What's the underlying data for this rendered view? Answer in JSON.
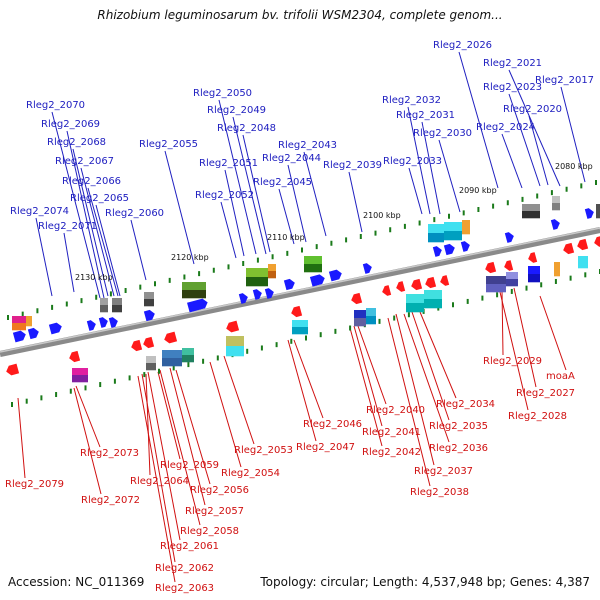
{
  "title": "Rhizobium leguminosarum bv. trifolii WSM2304, complete genom...",
  "footer": {
    "accession": "Accession: NC_011369",
    "summary": "Topology: circular; Length: 4,537,948 bp; Genes: 4,387"
  },
  "colors": {
    "forward_gene": "#1a1aff",
    "reverse_gene": "#ff1a1a",
    "forward_label": "#2020c0",
    "reverse_label": "#d01010",
    "backbone": "#8a8a8a",
    "tick": "#1a7a1a"
  },
  "scale_labels": [
    "2080 kbp",
    "2090 kbp",
    "2100 kbp",
    "2110 kbp",
    "2120 kbp",
    "2130 kbp"
  ],
  "forward_labels": [
    "Rleg2_2026",
    "Rleg2_2021",
    "Rleg2_2023",
    "Rleg2_2017",
    "Rleg2_2020",
    "Rleg2_2024",
    "Rleg2_2032",
    "Rleg2_2031",
    "Rleg2_2030",
    "Rleg2_2033",
    "Rleg2_2050",
    "Rleg2_2049",
    "Rleg2_2048",
    "Rleg2_2055",
    "Rleg2_2043",
    "Rleg2_2051",
    "Rleg2_2044",
    "Rleg2_2039",
    "Rleg2_2052",
    "Rleg2_2045",
    "Rleg2_2070",
    "Rleg2_2069",
    "Rleg2_2068",
    "Rleg2_2067",
    "Rleg2_2066",
    "Rleg2_2065",
    "Rleg2_2074",
    "Rleg2_2060",
    "Rleg2_2071"
  ],
  "reverse_labels": [
    "Rleg2_2029",
    "moaA",
    "Rleg2_2027",
    "Rleg2_2028",
    "Rleg2_2034",
    "Rleg2_2040",
    "Rleg2_2046",
    "Rleg2_2035",
    "Rleg2_2041",
    "Rleg2_2047",
    "Rleg2_2042",
    "Rleg2_2036",
    "Rleg2_2053",
    "Rleg2_2037",
    "Rleg2_2054",
    "Rleg2_2038",
    "Rleg2_2073",
    "Rleg2_2059",
    "Rleg2_2064",
    "Rleg2_2079",
    "Rleg2_2056",
    "Rleg2_2072",
    "Rleg2_2057",
    "Rleg2_2058",
    "Rleg2_2061",
    "Rleg2_2062",
    "Rleg2_2063"
  ]
}
